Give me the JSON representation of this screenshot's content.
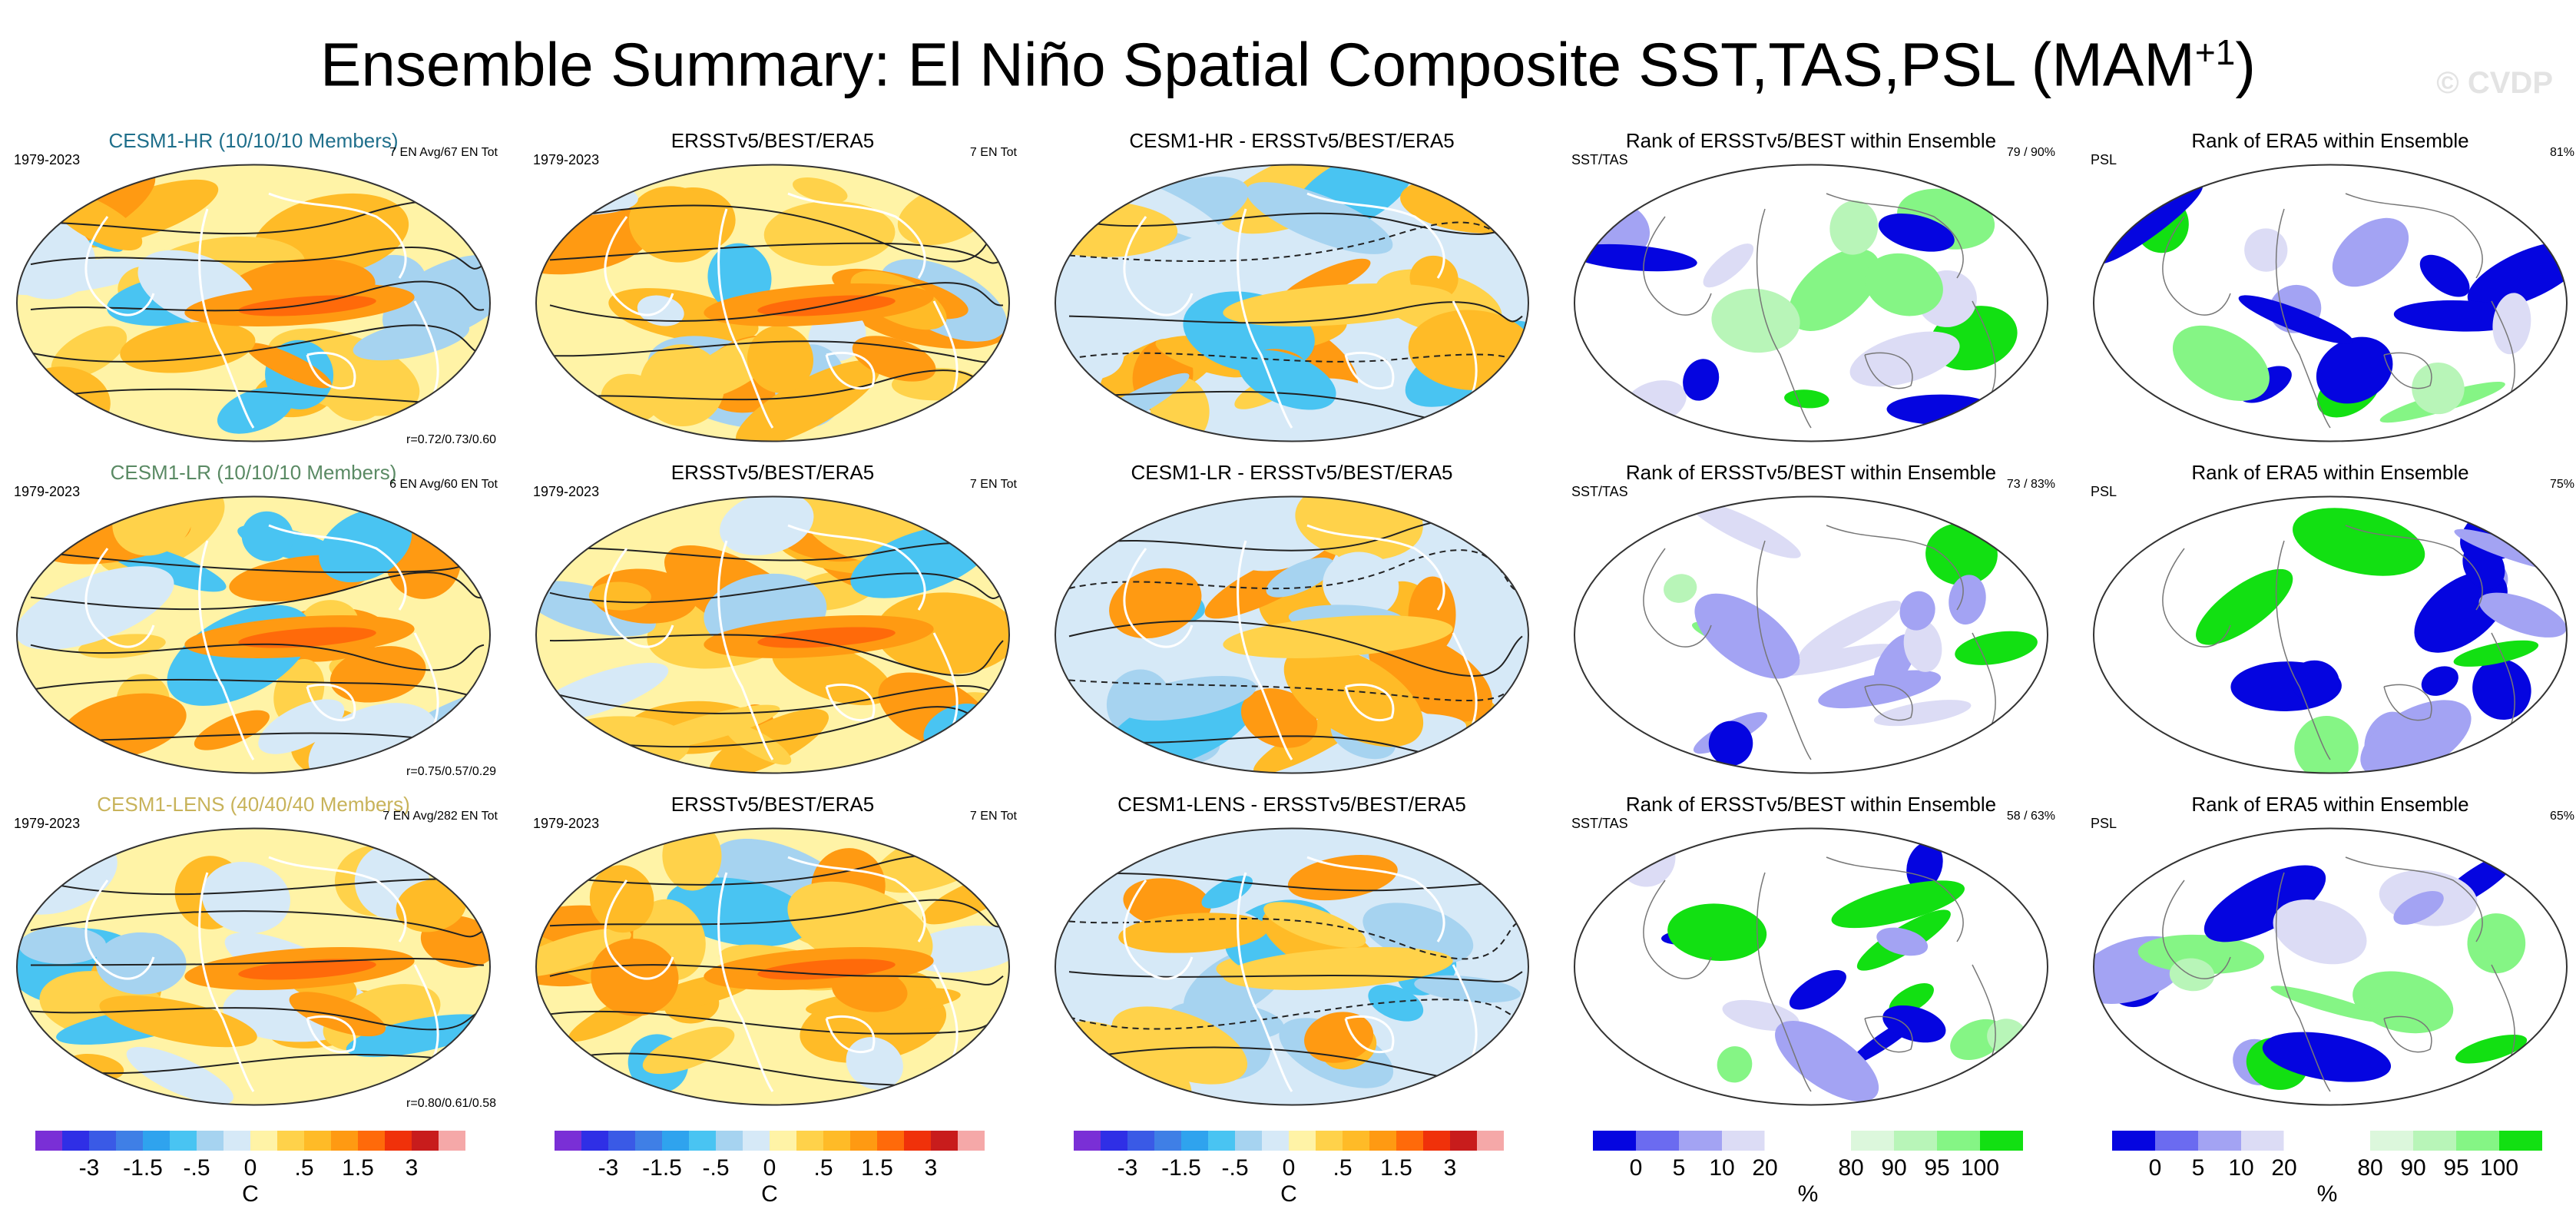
{
  "page": {
    "title": "Ensemble Summary: El Niño Spatial Composite SST,TAS,PSL (MAM",
    "title_sup": "+1",
    "title_close": ")",
    "watermark": "© CVDP"
  },
  "chart_data": {
    "type": "map-grid",
    "rows": [
      {
        "panels": [
          {
            "title": "CESM1-HR (10/10/10 Members)",
            "title_color": "#1f6f8b",
            "left": "1979-2023",
            "right": "7 EN Avg/67 EN Tot",
            "bottom": "r=0.72/0.73/0.60",
            "kind": "anomaly"
          },
          {
            "title": "ERSSTv5/BEST/ERA5",
            "left": "1979-2023",
            "right": "7 EN Tot",
            "kind": "anomaly"
          },
          {
            "title": "CESM1-HR - ERSSTv5/BEST/ERA5",
            "kind": "difference"
          },
          {
            "title": "Rank of ERSSTv5/BEST within Ensemble",
            "left": "SST/TAS",
            "right": "79 /  90%",
            "kind": "rank"
          },
          {
            "title": "Rank of ERA5 within Ensemble",
            "left": "PSL",
            "right": "81%",
            "kind": "rank"
          }
        ]
      },
      {
        "panels": [
          {
            "title": "CESM1-LR (10/10/10 Members)",
            "title_color": "#5a8a64",
            "left": "1979-2023",
            "right": "6 EN Avg/60 EN Tot",
            "bottom": "r=0.75/0.57/0.29",
            "kind": "anomaly"
          },
          {
            "title": "ERSSTv5/BEST/ERA5",
            "left": "1979-2023",
            "right": "7 EN Tot",
            "kind": "anomaly"
          },
          {
            "title": "CESM1-LR - ERSSTv5/BEST/ERA5",
            "kind": "difference"
          },
          {
            "title": "Rank of ERSSTv5/BEST within Ensemble",
            "left": "SST/TAS",
            "right": "73 /  83%",
            "kind": "rank"
          },
          {
            "title": "Rank of ERA5 within Ensemble",
            "left": "PSL",
            "right": "75%",
            "kind": "rank"
          }
        ]
      },
      {
        "panels": [
          {
            "title": "CESM1-LENS (40/40/40 Members)",
            "title_color": "#c8b35a",
            "left": "1979-2023",
            "right": "7 EN Avg/282 EN Tot",
            "bottom": "r=0.80/0.61/0.58",
            "kind": "anomaly"
          },
          {
            "title": "ERSSTv5/BEST/ERA5",
            "left": "1979-2023",
            "right": "7 EN Tot",
            "kind": "anomaly"
          },
          {
            "title": "CESM1-LENS - ERSSTv5/BEST/ERA5",
            "kind": "difference"
          },
          {
            "title": "Rank of ERSSTv5/BEST within Ensemble",
            "left": "SST/TAS",
            "right": "58 /  63%",
            "kind": "rank"
          },
          {
            "title": "Rank of ERA5 within Ensemble",
            "left": "PSL",
            "right": "65%",
            "kind": "rank"
          }
        ]
      }
    ],
    "colorbars": {
      "anomaly": {
        "colors": [
          "#7a2fd6",
          "#2f2fe6",
          "#3a5ae6",
          "#3f7fe6",
          "#2fa3ee",
          "#49c4f2",
          "#a6d3f0",
          "#d6e9f7",
          "#fff3a6",
          "#ffd24a",
          "#ffbb27",
          "#ff9a12",
          "#ff6a0a",
          "#f0310a",
          "#c81c1c",
          "#f5a8a8"
        ],
        "labels": [
          "-3",
          "-1.5",
          "-.5",
          "0",
          ".5",
          "1.5",
          "3"
        ],
        "label_after_box": [
          2,
          4,
          6,
          8,
          10,
          12,
          14
        ],
        "unit": "C"
      },
      "rank": {
        "colors": [
          "#0505e0",
          "#6b6bf0",
          "#a3a3f3",
          "#dcdcf5",
          "#ffffff",
          "#ffffff",
          "#dcf7dc",
          "#b8f5b8",
          "#85f585",
          "#12e012"
        ],
        "labels": [
          "0",
          "5",
          "10",
          "20",
          "80",
          "90",
          "95",
          "100"
        ],
        "label_after_box": [
          1,
          2,
          3,
          4,
          6,
          7,
          8,
          9
        ],
        "unit": "%"
      }
    }
  }
}
